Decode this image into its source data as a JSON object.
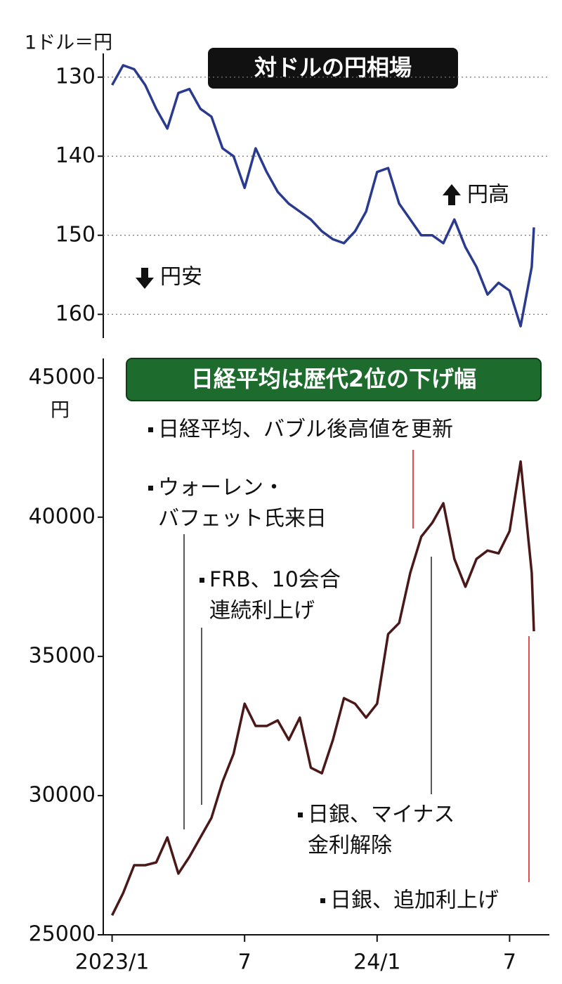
{
  "chart_data": [
    {
      "type": "line",
      "title": "対ドルの円相場",
      "ylabel": "1ドル＝円",
      "x": [
        0,
        0.5,
        1,
        1.5,
        2,
        2.5,
        3,
        3.5,
        4,
        4.5,
        5,
        5.5,
        6,
        6.5,
        7,
        7.5,
        8,
        8.5,
        9,
        9.5,
        10,
        10.5,
        11,
        11.5,
        12,
        12.5,
        13,
        13.5,
        14,
        14.5,
        15,
        15.5,
        16,
        16.5,
        17,
        17.5,
        18,
        18.5,
        19,
        19.1
      ],
      "values": [
        131,
        128.5,
        129,
        131,
        134,
        136.5,
        132,
        131.5,
        134,
        135,
        139,
        140,
        144,
        139,
        142,
        144.5,
        146,
        147,
        148,
        149.5,
        150.5,
        151,
        149.5,
        147,
        142,
        141.5,
        146,
        148,
        150,
        150,
        151,
        148,
        151.5,
        154,
        157.5,
        156,
        157,
        161.5,
        154,
        149
      ],
      "color": "#2a3b8f",
      "xlim": [
        -0.4,
        19.8
      ],
      "ylim": [
        163,
        127
      ],
      "yticks": [
        130,
        140,
        150,
        160
      ],
      "grid": true,
      "annotations": [
        "円高",
        "円安"
      ]
    },
    {
      "type": "line",
      "title": "日経平均は歴代2位の下げ幅",
      "ylabel": "円",
      "x": [
        0,
        0.5,
        1,
        1.5,
        2,
        2.5,
        3,
        3.5,
        4,
        4.5,
        5,
        5.5,
        6,
        6.5,
        7,
        7.5,
        8,
        8.5,
        9,
        9.5,
        10,
        10.5,
        11,
        11.5,
        12,
        12.5,
        13,
        13.5,
        14,
        14.5,
        15,
        15.5,
        16,
        16.5,
        17,
        17.5,
        18,
        18.5,
        19,
        19.1
      ],
      "values": [
        25700,
        26500,
        27500,
        27500,
        27600,
        28500,
        27200,
        27800,
        28500,
        29200,
        30500,
        31500,
        33300,
        32500,
        32500,
        32700,
        32000,
        32800,
        31000,
        30800,
        32000,
        33500,
        33300,
        32800,
        33300,
        35800,
        36200,
        38000,
        39300,
        39800,
        40500,
        38500,
        37500,
        38500,
        38800,
        38700,
        39500,
        42000,
        38000,
        35900
      ],
      "color": "#4a1818",
      "xlim": [
        -0.4,
        19.8
      ],
      "ylim": [
        25000,
        45700
      ],
      "yticks": [
        25000,
        30000,
        35000,
        40000,
        45000
      ],
      "xticks": [
        {
          "value": 0,
          "label": "2023/1"
        },
        {
          "value": 6,
          "label": "7"
        },
        {
          "value": 12,
          "label": "24/1"
        },
        {
          "value": 18,
          "label": "7"
        }
      ],
      "grid": false,
      "annotations": [
        [
          "日経平均、バブル後高値を更新"
        ],
        [
          "ウォーレン・",
          "バフェット氏来日"
        ],
        [
          "FRB、10会合",
          "連続利上げ"
        ],
        [
          "日銀、マイナス",
          "金利解除"
        ],
        [
          "日銀、追加利上げ"
        ]
      ]
    }
  ]
}
